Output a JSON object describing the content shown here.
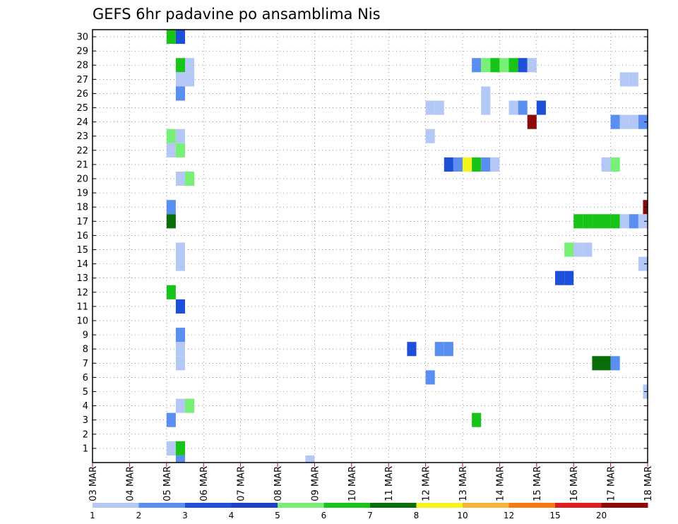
{
  "chart_data": {
    "type": "heatmap",
    "title": "GEFS 6hr padavine po ansamblima Nis",
    "x_tick_labels": [
      "03 MAR",
      "04 MAR",
      "05 MAR",
      "06 MAR",
      "07 MAR",
      "08 MAR",
      "09 MAR",
      "10 MAR",
      "11 MAR",
      "12 MAR",
      "13 MAR",
      "14 MAR",
      "15 MAR",
      "16 MAR",
      "17 MAR",
      "18 MAR"
    ],
    "y_tick_labels": [
      "1",
      "2",
      "3",
      "4",
      "5",
      "6",
      "7",
      "8",
      "9",
      "10",
      "11",
      "12",
      "13",
      "14",
      "15",
      "16",
      "17",
      "18",
      "19",
      "20",
      "21",
      "22",
      "23",
      "24",
      "25",
      "26",
      "27",
      "28",
      "29",
      "30"
    ],
    "xlim": [
      0,
      60
    ],
    "ylim": [
      0,
      30
    ],
    "grid": true,
    "colorbar": {
      "labels": [
        "1",
        "2",
        "3",
        "4",
        "5",
        "6",
        "7",
        "8",
        "10",
        "12",
        "15",
        "20"
      ],
      "colors": [
        "#b4c8f5",
        "#5a8ef0",
        "#1e4fd8",
        "#1a3fc8",
        "#78f078",
        "#19c419",
        "#0a6e0a",
        "#f5f51e",
        "#f5b43c",
        "#f57814",
        "#dc1e1e",
        "#8c0a0a"
      ]
    },
    "cells": [
      {
        "x": 8.5,
        "y": 30,
        "v": 6
      },
      {
        "x": 9.5,
        "y": 30,
        "v": 3
      },
      {
        "x": 9.5,
        "y": 28,
        "v": 6
      },
      {
        "x": 10.5,
        "y": 28,
        "v": 1
      },
      {
        "x": 9.5,
        "y": 27,
        "v": 1
      },
      {
        "x": 10.5,
        "y": 27,
        "v": 1
      },
      {
        "x": 9.5,
        "y": 26,
        "v": 2
      },
      {
        "x": 8.5,
        "y": 23,
        "v": 5
      },
      {
        "x": 9.5,
        "y": 23,
        "v": 1
      },
      {
        "x": 8.5,
        "y": 22,
        "v": 1
      },
      {
        "x": 9.5,
        "y": 22,
        "v": 5
      },
      {
        "x": 9.5,
        "y": 20,
        "v": 1
      },
      {
        "x": 10.5,
        "y": 20,
        "v": 5
      },
      {
        "x": 8.5,
        "y": 18,
        "v": 2
      },
      {
        "x": 8.5,
        "y": 17,
        "v": 7
      },
      {
        "x": 9.5,
        "y": 15,
        "v": 1
      },
      {
        "x": 9.5,
        "y": 14,
        "v": 1
      },
      {
        "x": 8.5,
        "y": 12,
        "v": 6
      },
      {
        "x": 9.5,
        "y": 11,
        "v": 3
      },
      {
        "x": 9.5,
        "y": 9,
        "v": 2
      },
      {
        "x": 9.5,
        "y": 8,
        "v": 1
      },
      {
        "x": 9.5,
        "y": 7,
        "v": 1
      },
      {
        "x": 9.5,
        "y": 4,
        "v": 1
      },
      {
        "x": 10.5,
        "y": 4,
        "v": 5
      },
      {
        "x": 8.5,
        "y": 3,
        "v": 2
      },
      {
        "x": 8.5,
        "y": 1,
        "v": 1
      },
      {
        "x": 9.5,
        "y": 1,
        "v": 6
      },
      {
        "x": 9.5,
        "y": 0,
        "v": 2
      },
      {
        "x": 23.5,
        "y": 0,
        "v": 1
      },
      {
        "x": 41.5,
        "y": 28,
        "v": 2
      },
      {
        "x": 42.5,
        "y": 28,
        "v": 5
      },
      {
        "x": 43.5,
        "y": 28,
        "v": 6
      },
      {
        "x": 44.5,
        "y": 28,
        "v": 5
      },
      {
        "x": 45.5,
        "y": 28,
        "v": 6
      },
      {
        "x": 46.5,
        "y": 28,
        "v": 3
      },
      {
        "x": 47.5,
        "y": 28,
        "v": 1
      },
      {
        "x": 57.5,
        "y": 27,
        "v": 1
      },
      {
        "x": 58.5,
        "y": 27,
        "v": 1
      },
      {
        "x": 42.5,
        "y": 26,
        "v": 1
      },
      {
        "x": 42.5,
        "y": 25,
        "v": 1
      },
      {
        "x": 45.5,
        "y": 25,
        "v": 1
      },
      {
        "x": 46.5,
        "y": 25,
        "v": 2
      },
      {
        "x": 48.5,
        "y": 25,
        "v": 3
      },
      {
        "x": 47.5,
        "y": 24,
        "v": 20
      },
      {
        "x": 56.5,
        "y": 24,
        "v": 2
      },
      {
        "x": 57.5,
        "y": 24,
        "v": 1
      },
      {
        "x": 58.5,
        "y": 24,
        "v": 1
      },
      {
        "x": 59.5,
        "y": 24,
        "v": 2
      },
      {
        "x": 37.5,
        "y": 25,
        "v": 1
      },
      {
        "x": 36.5,
        "y": 25,
        "v": 1
      },
      {
        "x": 36.5,
        "y": 23,
        "v": 1
      },
      {
        "x": 38.5,
        "y": 21,
        "v": 3
      },
      {
        "x": 39.5,
        "y": 21,
        "v": 2
      },
      {
        "x": 40.5,
        "y": 21,
        "v": 8
      },
      {
        "x": 41.5,
        "y": 21,
        "v": 6
      },
      {
        "x": 42.5,
        "y": 21,
        "v": 2
      },
      {
        "x": 43.5,
        "y": 21,
        "v": 1
      },
      {
        "x": 55.5,
        "y": 21,
        "v": 1
      },
      {
        "x": 56.5,
        "y": 21,
        "v": 5
      },
      {
        "x": 60.0,
        "y": 18,
        "v": 20
      },
      {
        "x": 52.5,
        "y": 17,
        "v": 6
      },
      {
        "x": 53.5,
        "y": 17,
        "v": 6
      },
      {
        "x": 54.5,
        "y": 17,
        "v": 6
      },
      {
        "x": 55.5,
        "y": 17,
        "v": 6
      },
      {
        "x": 56.5,
        "y": 17,
        "v": 6
      },
      {
        "x": 57.5,
        "y": 17,
        "v": 1
      },
      {
        "x": 58.5,
        "y": 17,
        "v": 2
      },
      {
        "x": 59.5,
        "y": 17,
        "v": 1
      },
      {
        "x": 51.5,
        "y": 15,
        "v": 5
      },
      {
        "x": 52.5,
        "y": 15,
        "v": 1
      },
      {
        "x": 53.5,
        "y": 15,
        "v": 1
      },
      {
        "x": 59.5,
        "y": 14,
        "v": 1
      },
      {
        "x": 50.5,
        "y": 13,
        "v": 3
      },
      {
        "x": 51.5,
        "y": 13,
        "v": 3
      },
      {
        "x": 34.5,
        "y": 8,
        "v": 3
      },
      {
        "x": 37.5,
        "y": 8,
        "v": 2
      },
      {
        "x": 38.5,
        "y": 8,
        "v": 2
      },
      {
        "x": 54.5,
        "y": 7,
        "v": 7
      },
      {
        "x": 55.5,
        "y": 7,
        "v": 7
      },
      {
        "x": 56.5,
        "y": 7,
        "v": 2
      },
      {
        "x": 36.5,
        "y": 6,
        "v": 2
      },
      {
        "x": 60.0,
        "y": 5,
        "v": 1
      },
      {
        "x": 41.5,
        "y": 3,
        "v": 6
      }
    ]
  }
}
